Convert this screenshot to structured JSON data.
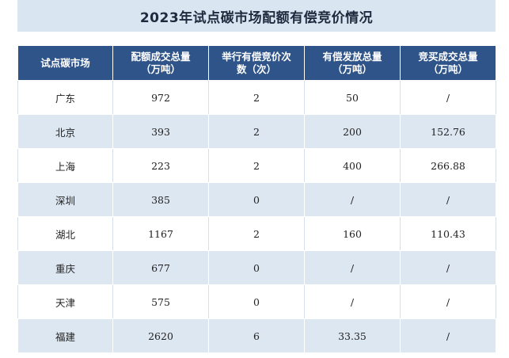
{
  "title": "2023年试点碳市场配额有偿竞价情况",
  "table": {
    "headers": [
      [
        "试点碳市场"
      ],
      [
        "配额成交总量",
        "（万吨）"
      ],
      [
        "举行有偿竞价次",
        "数（次）"
      ],
      [
        "有偿发放总量",
        "（万吨）"
      ],
      [
        "竞买成交总量",
        "（万吨）"
      ]
    ],
    "rows": [
      [
        "广东",
        "972",
        "2",
        "50",
        "/"
      ],
      [
        "北京",
        "393",
        "2",
        "200",
        "152.76"
      ],
      [
        "上海",
        "223",
        "2",
        "400",
        "266.88"
      ],
      [
        "深圳",
        "385",
        "0",
        "/",
        "/"
      ],
      [
        "湖北",
        "1167",
        "2",
        "160",
        "110.43"
      ],
      [
        "重庆",
        "677",
        "0",
        "/",
        "/"
      ],
      [
        "天津",
        "575",
        "0",
        "/",
        "/"
      ],
      [
        "福建",
        "2620",
        "6",
        "33.35",
        "/"
      ]
    ]
  },
  "colors": {
    "header_bg": "#2e5489",
    "title_bg": "#d9e5f1",
    "stripe_bg": "#dde7f2"
  }
}
